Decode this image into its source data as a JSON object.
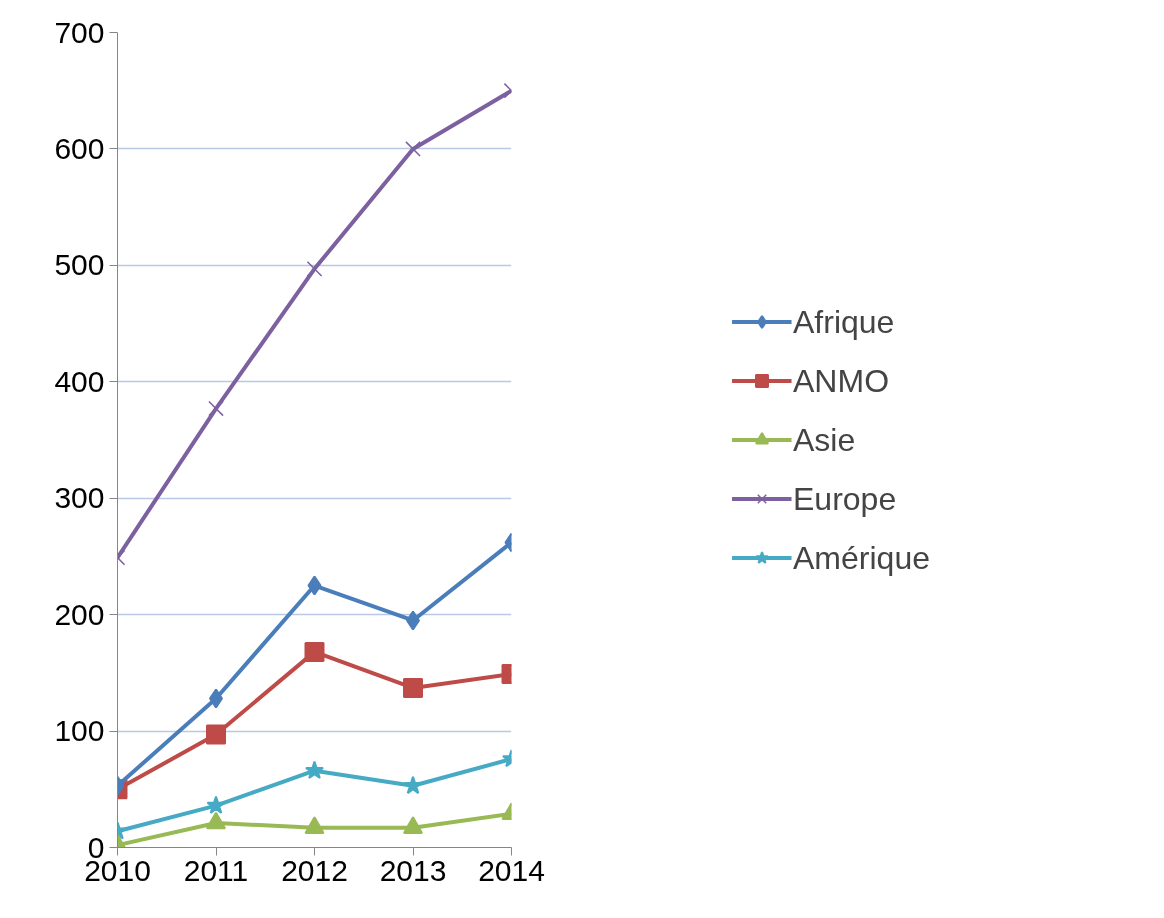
{
  "chart_data": {
    "type": "line",
    "x": [
      2010,
      2011,
      2012,
      2013,
      2014
    ],
    "xlim": [
      2010,
      2014
    ],
    "xticks": [
      2010,
      2011,
      2012,
      2013,
      2014
    ],
    "ylim": [
      0,
      700
    ],
    "yticks": [
      0,
      100,
      200,
      300,
      400,
      500,
      600,
      700
    ],
    "grid": "y",
    "legend": "right",
    "series": [
      {
        "name": "Afrique",
        "color": "#4a7ebb",
        "marker": "diamond",
        "values": [
          53,
          128,
          225,
          195,
          262
        ]
      },
      {
        "name": "ANMO",
        "color": "#be4b48",
        "marker": "square",
        "values": [
          50,
          97,
          168,
          137,
          149
        ]
      },
      {
        "name": "Asie",
        "color": "#98b954",
        "marker": "triangle",
        "values": [
          2,
          21,
          17,
          17,
          29
        ]
      },
      {
        "name": "Europe",
        "color": "#7d60a0",
        "marker": "cross",
        "values": [
          249,
          377,
          497,
          600,
          650
        ]
      },
      {
        "name": "Amérique",
        "color": "#46aac5",
        "marker": "star",
        "values": [
          14,
          36,
          66,
          53,
          76
        ]
      }
    ]
  }
}
